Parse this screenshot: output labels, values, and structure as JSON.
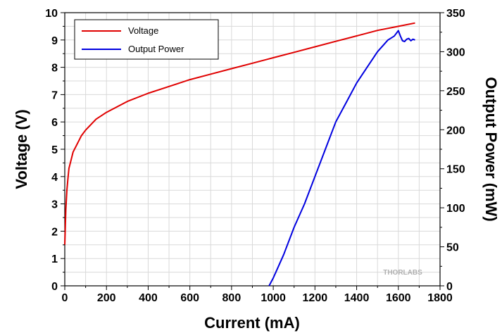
{
  "chart_data": {
    "type": "line",
    "xlabel": "Current (mA)",
    "ylabel_left": "Voltage (V)",
    "ylabel_right": "Output Power (mW)",
    "xlim": [
      0,
      1800
    ],
    "ylim_left": [
      0,
      10
    ],
    "ylim_right": [
      0,
      350
    ],
    "x_ticks": [
      "0",
      "200",
      "400",
      "600",
      "800",
      "1000",
      "1200",
      "1400",
      "1600",
      "1800"
    ],
    "y_ticks_left": [
      "0",
      "1",
      "2",
      "3",
      "4",
      "5",
      "6",
      "7",
      "8",
      "9",
      "10"
    ],
    "y_ticks_right": [
      "0",
      "50",
      "100",
      "150",
      "200",
      "250",
      "300",
      "350"
    ],
    "grid": true,
    "legend_position": "top-left",
    "watermark": "THORLABS",
    "series": [
      {
        "name": "Voltage",
        "axis": "left",
        "color": "#e00000",
        "x": [
          0,
          5,
          10,
          15,
          20,
          30,
          40,
          60,
          80,
          100,
          150,
          200,
          250,
          300,
          400,
          500,
          600,
          700,
          800,
          900,
          1000,
          1100,
          1200,
          1300,
          1400,
          1500,
          1600,
          1680
        ],
        "y": [
          1.5,
          2.8,
          3.5,
          3.9,
          4.3,
          4.6,
          4.9,
          5.2,
          5.5,
          5.7,
          6.1,
          6.35,
          6.55,
          6.75,
          7.05,
          7.3,
          7.55,
          7.75,
          7.95,
          8.15,
          8.35,
          8.55,
          8.75,
          8.95,
          9.15,
          9.35,
          9.5,
          9.62
        ]
      },
      {
        "name": "Output Power",
        "axis": "right",
        "color": "#0000e0",
        "x": [
          980,
          1000,
          1050,
          1100,
          1150,
          1200,
          1250,
          1300,
          1350,
          1400,
          1450,
          1500,
          1550,
          1580,
          1600,
          1610,
          1620,
          1630,
          1640,
          1650,
          1660,
          1670,
          1680
        ],
        "y": [
          0,
          10,
          40,
          75,
          105,
          140,
          175,
          210,
          235,
          260,
          280,
          300,
          315,
          320,
          327,
          320,
          314,
          313,
          316,
          317,
          314,
          316,
          315
        ]
      }
    ]
  }
}
